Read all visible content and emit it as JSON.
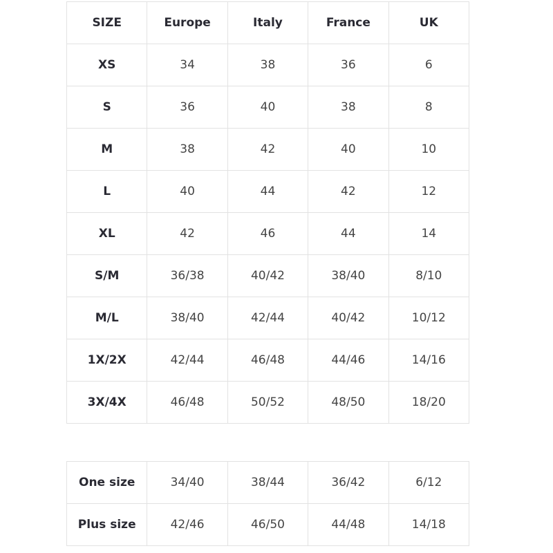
{
  "headers": [
    "SIZE",
    "Europe",
    "Italy",
    "France",
    "UK"
  ],
  "rows": [
    [
      "XS",
      "34",
      "38",
      "36",
      "6"
    ],
    [
      "S",
      "36",
      "40",
      "38",
      "8"
    ],
    [
      "M",
      "38",
      "42",
      "40",
      "10"
    ],
    [
      "L",
      "40",
      "44",
      "42",
      "12"
    ],
    [
      "XL",
      "42",
      "46",
      "44",
      "14"
    ],
    [
      "S/M",
      "36/38",
      "40/42",
      "38/40",
      "8/10"
    ],
    [
      "M/L",
      "38/40",
      "42/44",
      "40/42",
      "10/12"
    ],
    [
      "1X/2X",
      "42/44",
      "46/48",
      "44/46",
      "14/16"
    ],
    [
      "3X/4X",
      "46/48",
      "50/52",
      "48/50",
      "18/20"
    ]
  ],
  "extra_rows": [
    [
      "One size",
      "34/40",
      "38/44",
      "36/42",
      "6/12"
    ],
    [
      "Plus size",
      "42/46",
      "46/50",
      "44/48",
      "14/18"
    ]
  ],
  "colors": {
    "border": "#e2e2e2",
    "label_text": "#2a2a33",
    "value_text": "#444444"
  }
}
